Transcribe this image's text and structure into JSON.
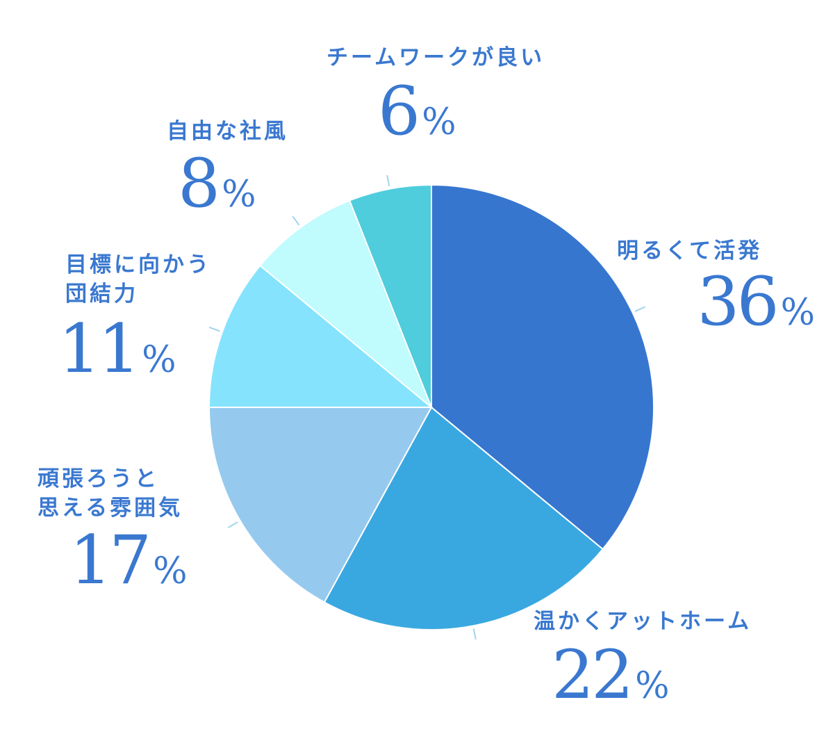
{
  "chart_data": {
    "type": "pie",
    "title": "",
    "slices": [
      {
        "label": "明るくて活発",
        "label_lines": [
          "明るくて活発"
        ],
        "value": 36,
        "value_text": "36",
        "color": "#3676cf"
      },
      {
        "label": "温かくアットホーム",
        "label_lines": [
          "温かくアットホーム"
        ],
        "value": 22,
        "value_text": "22",
        "color": "#3aa8e0"
      },
      {
        "label": "頑張ろうと思える雰囲気",
        "label_lines": [
          "頑張ろうと",
          "思える雰囲気"
        ],
        "value": 17,
        "value_text": "17",
        "color": "#96c9ee"
      },
      {
        "label": "目標に向かう団結力",
        "label_lines": [
          "目標に向かう",
          "団結力"
        ],
        "value": 11,
        "value_text": "11",
        "color": "#86e3fd"
      },
      {
        "label": "自由な社風",
        "label_lines": [
          "自由な社風"
        ],
        "value": 8,
        "value_text": "8",
        "color": "#c0fbfe"
      },
      {
        "label": "チームワークが良い",
        "label_lines": [
          "チームワークが良い"
        ],
        "value": 6,
        "value_text": "6",
        "color": "#4fcddc"
      }
    ],
    "percent_sign": "%",
    "start_angle_deg": 0,
    "direction": "clockwise",
    "label_color": "#3a78d0",
    "leader_color": "#9fd4ec"
  }
}
